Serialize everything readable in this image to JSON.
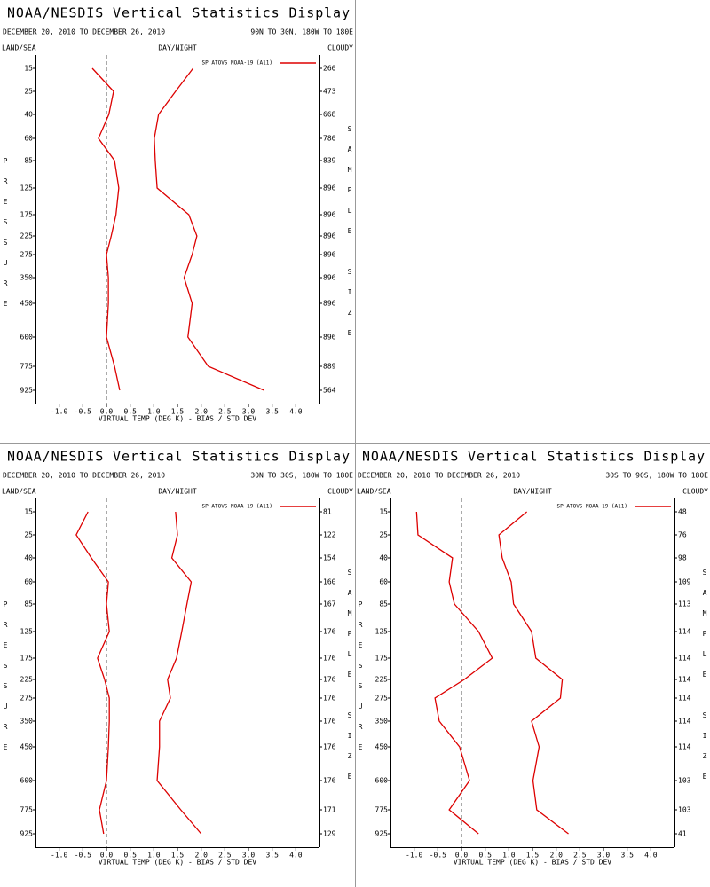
{
  "chart_data": [
    {
      "type": "line",
      "title": "NOAA/NESDIS Vertical Statistics Display",
      "subtitle": "DECEMBER 20, 2010 TO DECEMBER 26, 2010",
      "region": "90N TO 30N, 180W TO 180E",
      "left_header": "LAND/SEA",
      "center_header": "DAY/NIGHT",
      "right_header": "CLOUDY",
      "y_label": "PRESSURE",
      "y2_label": "SAMPLE SIZE",
      "x_label": "VIRTUAL TEMP (DEG K) - BIAS / STD DEV",
      "categories": [
        "15",
        "25",
        "40",
        "60",
        "85",
        "125",
        "175",
        "225",
        "275",
        "350",
        "450",
        "600",
        "775",
        "925"
      ],
      "sample_sizes": [
        260,
        473,
        668,
        780,
        839,
        896,
        896,
        896,
        896,
        896,
        896,
        896,
        889,
        564
      ],
      "xlim": [
        -1.5,
        4.5
      ],
      "xticks": [
        {
          "value": -1,
          "label": "-1.0"
        },
        -0.5,
        {
          "value": 0,
          "label": "0.0"
        },
        0.5,
        {
          "value": 1,
          "label": "1.0"
        },
        1.5,
        {
          "value": 2,
          "label": "2.0"
        },
        2.5,
        {
          "value": 3,
          "label": "3.0"
        },
        3.5,
        {
          "value": 4,
          "label": "4.0"
        }
      ],
      "series": [
        {
          "name": "SP ATOVS NOAA-19 (A11)",
          "color": "#dd0000",
          "values": [
            -0.3,
            0.15,
            0.05,
            -0.17,
            0.17,
            0.26,
            0.2,
            0.1,
            0.0,
            0.04,
            0.04,
            0.0,
            0.17,
            0.28
          ]
        },
        {
          "color": "#dd0000",
          "values": [
            1.83,
            1.46,
            1.1,
            1.01,
            1.03,
            1.07,
            1.74,
            1.91,
            1.81,
            1.64,
            1.81,
            1.72,
            2.15,
            3.33
          ]
        }
      ]
    },
    {
      "type": "line",
      "title": "NOAA/NESDIS Vertical Statistics Display",
      "subtitle": "DECEMBER 20, 2010 TO DECEMBER 26, 2010",
      "region": "30N TO 30S, 180W TO 180E",
      "left_header": "LAND/SEA",
      "center_header": "DAY/NIGHT",
      "right_header": "CLOUDY",
      "y_label": "PRESSURE",
      "y2_label": "SAMPLE SIZE",
      "x_label": "VIRTUAL TEMP (DEG K) - BIAS / STD DEV",
      "categories": [
        "15",
        "25",
        "40",
        "60",
        "85",
        "125",
        "175",
        "225",
        "275",
        "350",
        "450",
        "600",
        "775",
        "925"
      ],
      "sample_sizes": [
        81,
        122,
        154,
        160,
        167,
        176,
        176,
        176,
        176,
        176,
        176,
        176,
        171,
        129
      ],
      "xlim": [
        -1.5,
        4.5
      ],
      "xticks": [
        {
          "value": -1,
          "label": "-1.0"
        },
        -0.5,
        {
          "value": 0,
          "label": "0.0"
        },
        0.5,
        {
          "value": 1,
          "label": "1.0"
        },
        1.5,
        {
          "value": 2,
          "label": "2.0"
        },
        2.5,
        {
          "value": 3,
          "label": "3.0"
        },
        3.5,
        {
          "value": 4,
          "label": "4.0"
        }
      ],
      "series": [
        {
          "name": "SP ATOVS NOAA-19 (A11)",
          "color": "#dd0000",
          "values": [
            -0.39,
            -0.64,
            -0.32,
            0.04,
            0.0,
            0.06,
            -0.19,
            -0.04,
            0.06,
            0.06,
            0.04,
            0.0,
            -0.15,
            -0.06
          ]
        },
        {
          "color": "#dd0000",
          "values": [
            1.46,
            1.5,
            1.38,
            1.79,
            1.7,
            1.59,
            1.48,
            1.29,
            1.35,
            1.12,
            1.12,
            1.07,
            1.57,
            2.0
          ]
        }
      ]
    },
    {
      "type": "line",
      "title": "NOAA/NESDIS Vertical Statistics Display",
      "subtitle": "DECEMBER 20, 2010 TO DECEMBER 26, 2010",
      "region": "30S TO 90S, 180W TO 180E",
      "left_header": "LAND/SEA",
      "center_header": "DAY/NIGHT",
      "right_header": "CLOUDY",
      "y_label": "PRESSURE",
      "y2_label": "SAMPLE SIZE",
      "x_label": "VIRTUAL TEMP (DEG K) - BIAS / STD DEV",
      "categories": [
        "15",
        "25",
        "40",
        "60",
        "85",
        "125",
        "175",
        "225",
        "275",
        "350",
        "450",
        "600",
        "775",
        "925"
      ],
      "sample_sizes": [
        48,
        76,
        98,
        109,
        113,
        114,
        114,
        114,
        114,
        114,
        114,
        103,
        103,
        41
      ],
      "xlim": [
        -1.5,
        4.5
      ],
      "xticks": [
        {
          "value": -1,
          "label": "-1.0"
        },
        -0.5,
        {
          "value": 0,
          "label": "0.0"
        },
        0.5,
        {
          "value": 1,
          "label": "1.0"
        },
        1.5,
        {
          "value": 2,
          "label": "2.0"
        },
        2.5,
        {
          "value": 3,
          "label": "3.0"
        },
        3.5,
        {
          "value": 4,
          "label": "4.0"
        }
      ],
      "series": [
        {
          "name": "SP ATOVS NOAA-19 (A11)",
          "color": "#dd0000",
          "values": [
            -0.95,
            -0.92,
            -0.19,
            -0.26,
            -0.15,
            0.36,
            0.65,
            0.06,
            -0.56,
            -0.47,
            -0.04,
            0.17,
            -0.26,
            0.36
          ]
        },
        {
          "color": "#dd0000",
          "values": [
            1.38,
            0.79,
            0.86,
            1.05,
            1.1,
            1.48,
            1.57,
            2.13,
            2.09,
            1.48,
            1.64,
            1.51,
            1.59,
            2.26
          ]
        }
      ]
    }
  ]
}
